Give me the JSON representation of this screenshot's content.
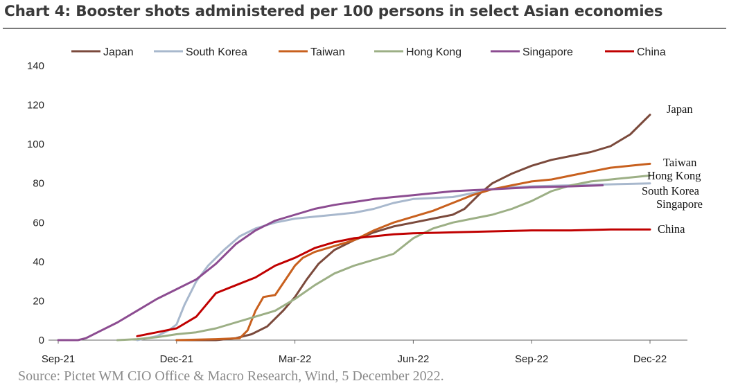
{
  "title": "Chart 4: Booster shots administered per 100 persons in select Asian economies",
  "source": "Source: Pictet WM CIO Office & Macro Research, Wind, 5 December 2022.",
  "chart_data": {
    "type": "line",
    "title": "Chart 4: Booster shots administered per 100 persons in select Asian economies",
    "xlabel": "",
    "ylabel": "",
    "x_domain_months": [
      0,
      15
    ],
    "ylim": [
      0,
      140
    ],
    "y_ticks": [
      0,
      20,
      40,
      60,
      80,
      100,
      120,
      140
    ],
    "x_ticks": [
      {
        "label": "Sep-21",
        "x": 0
      },
      {
        "label": "Dec-21",
        "x": 3
      },
      {
        "label": "Mar-22",
        "x": 6
      },
      {
        "label": "Jun-22",
        "x": 9
      },
      {
        "label": "Sep-22",
        "x": 12
      },
      {
        "label": "Dec-22",
        "x": 15
      }
    ],
    "grid": false,
    "legend_position": "top",
    "series": [
      {
        "name": "Japan",
        "color": "#7b4a3c",
        "end_label": "Japan",
        "points": [
          [
            3.0,
            0
          ],
          [
            4.0,
            0
          ],
          [
            4.5,
            1
          ],
          [
            4.9,
            3
          ],
          [
            5.3,
            7
          ],
          [
            5.7,
            15
          ],
          [
            6.0,
            22
          ],
          [
            6.3,
            31
          ],
          [
            6.6,
            39
          ],
          [
            7.0,
            46
          ],
          [
            7.5,
            51
          ],
          [
            8.0,
            55
          ],
          [
            8.5,
            58
          ],
          [
            9.0,
            60
          ],
          [
            9.5,
            62
          ],
          [
            10.0,
            64
          ],
          [
            10.3,
            67
          ],
          [
            10.7,
            75
          ],
          [
            11.0,
            80
          ],
          [
            11.5,
            85
          ],
          [
            12.0,
            89
          ],
          [
            12.5,
            92
          ],
          [
            13.0,
            94
          ],
          [
            13.5,
            96
          ],
          [
            14.0,
            99
          ],
          [
            14.5,
            105
          ],
          [
            14.8,
            111
          ],
          [
            15.0,
            115
          ]
        ]
      },
      {
        "name": "South Korea",
        "color": "#a8b8cd",
        "end_label": "South Korea",
        "points": [
          [
            2.0,
            0
          ],
          [
            2.5,
            2
          ],
          [
            2.8,
            5
          ],
          [
            3.0,
            8
          ],
          [
            3.2,
            18
          ],
          [
            3.5,
            30
          ],
          [
            3.8,
            38
          ],
          [
            4.2,
            46
          ],
          [
            4.6,
            53
          ],
          [
            5.0,
            57
          ],
          [
            5.5,
            60
          ],
          [
            6.0,
            62
          ],
          [
            6.5,
            63
          ],
          [
            7.0,
            64
          ],
          [
            7.5,
            65
          ],
          [
            8.0,
            67
          ],
          [
            8.5,
            70
          ],
          [
            9.0,
            72
          ],
          [
            9.5,
            72.5
          ],
          [
            10.0,
            73
          ],
          [
            10.5,
            75
          ],
          [
            11.0,
            77
          ],
          [
            11.5,
            78
          ],
          [
            12.0,
            78.5
          ],
          [
            13.0,
            79
          ],
          [
            14.0,
            79.5
          ],
          [
            15.0,
            80
          ]
        ]
      },
      {
        "name": "Taiwan",
        "color": "#c8601e",
        "end_label": "Taiwan",
        "points": [
          [
            3.0,
            0
          ],
          [
            4.0,
            0.5
          ],
          [
            4.6,
            1
          ],
          [
            4.8,
            5
          ],
          [
            5.0,
            15
          ],
          [
            5.2,
            22
          ],
          [
            5.5,
            23
          ],
          [
            5.8,
            32
          ],
          [
            6.0,
            38
          ],
          [
            6.2,
            42
          ],
          [
            6.5,
            45
          ],
          [
            7.0,
            48
          ],
          [
            7.5,
            51
          ],
          [
            8.0,
            56
          ],
          [
            8.5,
            60
          ],
          [
            9.0,
            63
          ],
          [
            9.5,
            66
          ],
          [
            10.0,
            70
          ],
          [
            10.5,
            74
          ],
          [
            11.0,
            77
          ],
          [
            11.5,
            79
          ],
          [
            12.0,
            81
          ],
          [
            12.5,
            82
          ],
          [
            13.0,
            84
          ],
          [
            13.5,
            86
          ],
          [
            14.0,
            88
          ],
          [
            14.5,
            89
          ],
          [
            15.0,
            90
          ]
        ]
      },
      {
        "name": "Hong Kong",
        "color": "#9caf85",
        "end_label": "Hong Kong",
        "points": [
          [
            1.5,
            0
          ],
          [
            2.0,
            0.5
          ],
          [
            2.5,
            1.5
          ],
          [
            3.0,
            3
          ],
          [
            3.5,
            4
          ],
          [
            4.0,
            6
          ],
          [
            4.5,
            9
          ],
          [
            5.0,
            12
          ],
          [
            5.5,
            15
          ],
          [
            6.0,
            21
          ],
          [
            6.5,
            28
          ],
          [
            7.0,
            34
          ],
          [
            7.5,
            38
          ],
          [
            8.0,
            41
          ],
          [
            8.5,
            44
          ],
          [
            9.0,
            52
          ],
          [
            9.5,
            57
          ],
          [
            10.0,
            60
          ],
          [
            10.5,
            62
          ],
          [
            11.0,
            64
          ],
          [
            11.5,
            67
          ],
          [
            12.0,
            71
          ],
          [
            12.5,
            76
          ],
          [
            13.0,
            79
          ],
          [
            13.5,
            81
          ],
          [
            14.0,
            82
          ],
          [
            14.5,
            83
          ],
          [
            15.0,
            84
          ]
        ]
      },
      {
        "name": "Singapore",
        "color": "#8c4c91",
        "end_label": "Singapore",
        "points": [
          [
            0,
            0
          ],
          [
            0.5,
            0
          ],
          [
            0.7,
            1
          ],
          [
            1.0,
            4
          ],
          [
            1.5,
            9
          ],
          [
            2.0,
            15
          ],
          [
            2.5,
            21
          ],
          [
            3.0,
            26
          ],
          [
            3.5,
            31
          ],
          [
            4.0,
            39
          ],
          [
            4.5,
            49
          ],
          [
            5.0,
            56
          ],
          [
            5.5,
            61
          ],
          [
            6.0,
            64
          ],
          [
            6.5,
            67
          ],
          [
            7.0,
            69
          ],
          [
            7.5,
            70.5
          ],
          [
            8.0,
            72
          ],
          [
            8.5,
            73
          ],
          [
            9.0,
            74
          ],
          [
            9.5,
            75
          ],
          [
            10.0,
            76
          ],
          [
            10.5,
            76.5
          ],
          [
            11.0,
            77
          ],
          [
            11.5,
            77.5
          ],
          [
            12.0,
            78
          ],
          [
            13.0,
            78.5
          ],
          [
            13.8,
            79
          ]
        ]
      },
      {
        "name": "China",
        "color": "#c00000",
        "end_label": "China",
        "points": [
          [
            2.0,
            2
          ],
          [
            2.5,
            4
          ],
          [
            3.0,
            6
          ],
          [
            3.5,
            12
          ],
          [
            4.0,
            24
          ],
          [
            4.5,
            28
          ],
          [
            5.0,
            32
          ],
          [
            5.5,
            38
          ],
          [
            6.0,
            42
          ],
          [
            6.5,
            47
          ],
          [
            7.0,
            50
          ],
          [
            7.5,
            52
          ],
          [
            8.0,
            53
          ],
          [
            8.5,
            54
          ],
          [
            9.0,
            54.5
          ],
          [
            10.0,
            55
          ],
          [
            11.0,
            55.5
          ],
          [
            12.0,
            56
          ],
          [
            13.0,
            56
          ],
          [
            14.0,
            56.5
          ],
          [
            15.0,
            56.5
          ]
        ]
      }
    ]
  }
}
